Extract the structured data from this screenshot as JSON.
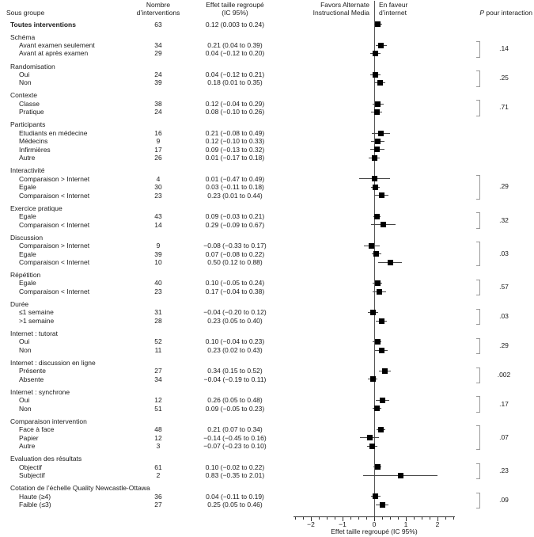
{
  "figure": {
    "columns": {
      "subgroup": "Sous groupe",
      "n_line1": "Nombre",
      "n_line2": "d’interventions",
      "effect_line1": "Effet taille regroupé",
      "effect_line2": "(IC 95%)",
      "favors_left_line1": "Favors Alternate",
      "favors_left_line2": "Instructional Media",
      "favors_right_line1": "En faveur",
      "favors_right_line2": "d’internet",
      "p_label_italic": "P",
      "p_label_rest": "pour interaction"
    }
  },
  "chart_data": {
    "type": "scatter",
    "subtype": "forest-plot",
    "title": "",
    "xlabel": "Effet taille regroupé (IC 95%)",
    "xlim": [
      -2.5,
      2.5
    ],
    "x_major_ticks": [
      -2,
      -1,
      0,
      1,
      2
    ],
    "x_tick_labels": [
      "−2",
      "−1",
      "0",
      "1",
      "2"
    ],
    "x_minor_step": 0.25,
    "grid": false,
    "marker_color": "#000000",
    "zero_line_x": 0,
    "sections": [
      {
        "header": null,
        "p_interaction": null,
        "rows": [
          {
            "label": "Toutes interventions",
            "bold": true,
            "n": "63",
            "effect_label": "0.12 (0.003 to 0.24)",
            "estimate": 0.12,
            "ci_low": 0.003,
            "ci_high": 0.24
          }
        ]
      },
      {
        "header": "Schéma",
        "p_interaction": ".14",
        "rows": [
          {
            "label": "Avant examen seulement",
            "n": "34",
            "effect_label": "0.21 (0.04 to 0.39)",
            "estimate": 0.21,
            "ci_low": 0.04,
            "ci_high": 0.39
          },
          {
            "label": "Avant at après examen",
            "n": "29",
            "effect_label": "0.04 (−0.12 to 0.20)",
            "estimate": 0.04,
            "ci_low": -0.12,
            "ci_high": 0.2
          }
        ]
      },
      {
        "header": "Randomisation",
        "p_interaction": ".25",
        "rows": [
          {
            "label": "Oui",
            "n": "24",
            "effect_label": "0.04 (−0.12 to 0.21)",
            "estimate": 0.04,
            "ci_low": -0.12,
            "ci_high": 0.21
          },
          {
            "label": "Non",
            "n": "39",
            "effect_label": "0.18 (0.01 to 0.35)",
            "estimate": 0.18,
            "ci_low": 0.01,
            "ci_high": 0.35
          }
        ]
      },
      {
        "header": "Contexte",
        "p_interaction": ".71",
        "rows": [
          {
            "label": "Classe",
            "n": "38",
            "effect_label": "0.12 (−0.04 to 0.29)",
            "estimate": 0.12,
            "ci_low": -0.04,
            "ci_high": 0.29
          },
          {
            "label": "Pratique",
            "n": "24",
            "effect_label": "0.08 (−0.10 to 0.26)",
            "estimate": 0.08,
            "ci_low": -0.1,
            "ci_high": 0.26
          }
        ]
      },
      {
        "header": "Participants",
        "p_interaction": null,
        "rows": [
          {
            "label": "Etudiants en médecine",
            "n": "16",
            "effect_label": "0.21 (−0.08 to 0.49)",
            "estimate": 0.21,
            "ci_low": -0.08,
            "ci_high": 0.49
          },
          {
            "label": "Médecins",
            "n": "9",
            "effect_label": "0.12 (−0.10 to 0.33)",
            "estimate": 0.12,
            "ci_low": -0.1,
            "ci_high": 0.33
          },
          {
            "label": "Infirmières",
            "n": "17",
            "effect_label": "0.09 (−0.13 to 0.32)",
            "estimate": 0.09,
            "ci_low": -0.13,
            "ci_high": 0.32
          },
          {
            "label": "Autre",
            "n": "26",
            "effect_label": "0.01 (−0.17 to 0.18)",
            "estimate": 0.01,
            "ci_low": -0.17,
            "ci_high": 0.18
          }
        ]
      },
      {
        "header": "Interactivité",
        "p_interaction": ".29",
        "rows": [
          {
            "label": "Comparaison > Internet",
            "n": "4",
            "effect_label": "0.01 (−0.47 to 0.49)",
            "estimate": 0.01,
            "ci_low": -0.47,
            "ci_high": 0.49
          },
          {
            "label": "Egale",
            "n": "30",
            "effect_label": "0.03 (−0.11 to 0.18)",
            "estimate": 0.03,
            "ci_low": -0.11,
            "ci_high": 0.18
          },
          {
            "label": "Comparaison < Internet",
            "n": "23",
            "effect_label": "0.23 (0.01 to 0.44)",
            "estimate": 0.23,
            "ci_low": 0.01,
            "ci_high": 0.44
          }
        ]
      },
      {
        "header": "Exercice pratique",
        "p_interaction": ".32",
        "rows": [
          {
            "label": "Egale",
            "n": "43",
            "effect_label": "0.09 (−0.03 to 0.21)",
            "estimate": 0.09,
            "ci_low": -0.03,
            "ci_high": 0.21
          },
          {
            "label": "Comparaison < Internet",
            "n": "14",
            "effect_label": "0.29 (−0.09 to 0.67)",
            "estimate": 0.29,
            "ci_low": -0.09,
            "ci_high": 0.67
          }
        ]
      },
      {
        "header": "Discussion",
        "p_interaction": ".03",
        "rows": [
          {
            "label": "Comparaison > Internet",
            "n": "9",
            "effect_label": "−0.08 (−0.33 to 0.17)",
            "estimate": -0.08,
            "ci_low": -0.33,
            "ci_high": 0.17
          },
          {
            "label": "Egale",
            "n": "39",
            "effect_label": "0.07 (−0.08 to 0.22)",
            "estimate": 0.07,
            "ci_low": -0.08,
            "ci_high": 0.22
          },
          {
            "label": "Comparaison < Internet",
            "n": "10",
            "effect_label": "0.50 (0.12 to 0.88)",
            "estimate": 0.5,
            "ci_low": 0.12,
            "ci_high": 0.88
          }
        ]
      },
      {
        "header": "Répétition",
        "p_interaction": ".57",
        "rows": [
          {
            "label": "Egale",
            "n": "40",
            "effect_label": "0.10 (−0.05 to 0.24)",
            "estimate": 0.1,
            "ci_low": -0.05,
            "ci_high": 0.24
          },
          {
            "label": "Comparaison < Internet",
            "n": "23",
            "effect_label": "0.17 (−0.04 to 0.38)",
            "estimate": 0.17,
            "ci_low": -0.04,
            "ci_high": 0.38
          }
        ]
      },
      {
        "header": "Durée",
        "p_interaction": ".03",
        "rows": [
          {
            "label": "≤1 semaine",
            "n": "31",
            "effect_label": "−0.04 (−0.20 to 0.12)",
            "estimate": -0.04,
            "ci_low": -0.2,
            "ci_high": 0.12
          },
          {
            "label": ">1 semaine",
            "n": "28",
            "effect_label": "0.23 (0.05 to 0.40)",
            "estimate": 0.23,
            "ci_low": 0.05,
            "ci_high": 0.4
          }
        ]
      },
      {
        "header": "Internet : tutorat",
        "p_interaction": ".29",
        "rows": [
          {
            "label": "Oui",
            "n": "52",
            "effect_label": "0.10 (−0.04 to 0.23)",
            "estimate": 0.1,
            "ci_low": -0.04,
            "ci_high": 0.23
          },
          {
            "label": "Non",
            "n": "11",
            "effect_label": "0.23 (0.02 to 0.43)",
            "estimate": 0.23,
            "ci_low": 0.02,
            "ci_high": 0.43
          }
        ]
      },
      {
        "header": "Internet : discussion en ligne",
        "p_interaction": ".002",
        "rows": [
          {
            "label": "Présente",
            "n": "27",
            "effect_label": "0.34 (0.15 to 0.52)",
            "estimate": 0.34,
            "ci_low": 0.15,
            "ci_high": 0.52
          },
          {
            "label": "Absente",
            "n": "34",
            "effect_label": "−0.04 (−0.19 to 0.11)",
            "estimate": -0.04,
            "ci_low": -0.19,
            "ci_high": 0.11
          }
        ]
      },
      {
        "header": "Internet : synchrone",
        "p_interaction": ".17",
        "rows": [
          {
            "label": "Oui",
            "n": "12",
            "effect_label": "0.26 (0.05 to 0.48)",
            "estimate": 0.26,
            "ci_low": 0.05,
            "ci_high": 0.48
          },
          {
            "label": "Non",
            "n": "51",
            "effect_label": "0.09 (−0.05 to 0.23)",
            "estimate": 0.09,
            "ci_low": -0.05,
            "ci_high": 0.23
          }
        ]
      },
      {
        "header": "Comparaison intervention",
        "p_interaction": ".07",
        "rows": [
          {
            "label": "Face à face",
            "n": "48",
            "effect_label": "0.21 (0.07 to 0.34)",
            "estimate": 0.21,
            "ci_low": 0.07,
            "ci_high": 0.34
          },
          {
            "label": "Papier",
            "n": "12",
            "effect_label": "−0.14 (−0.45 to 0.16)",
            "estimate": -0.14,
            "ci_low": -0.45,
            "ci_high": 0.16
          },
          {
            "label": "Autre",
            "n": "3",
            "effect_label": "−0.07 (−0.23 to 0.10)",
            "estimate": -0.07,
            "ci_low": -0.23,
            "ci_high": 0.1
          }
        ]
      },
      {
        "header": "Evaluation des résultats",
        "p_interaction": ".23",
        "rows": [
          {
            "label": "Objectif",
            "n": "61",
            "effect_label": "0.10 (−0.02 to 0.22)",
            "estimate": 0.1,
            "ci_low": -0.02,
            "ci_high": 0.22
          },
          {
            "label": "Subjectif",
            "n": "2",
            "effect_label": "0.83 (−0.35 to 2.01)",
            "estimate": 0.83,
            "ci_low": -0.35,
            "ci_high": 2.01
          }
        ]
      },
      {
        "header": "Cotation de l’échelle Quality Newcastle-Ottawa",
        "p_interaction": ".09",
        "rows": [
          {
            "label": "Haute (≥4)",
            "n": "36",
            "effect_label": "0.04 (−0.11 to 0.19)",
            "estimate": 0.04,
            "ci_low": -0.11,
            "ci_high": 0.19
          },
          {
            "label": "Faible (≤3)",
            "n": "27",
            "effect_label": "0.25 (0.05 to 0.46)",
            "estimate": 0.25,
            "ci_low": 0.05,
            "ci_high": 0.46
          }
        ]
      }
    ]
  }
}
